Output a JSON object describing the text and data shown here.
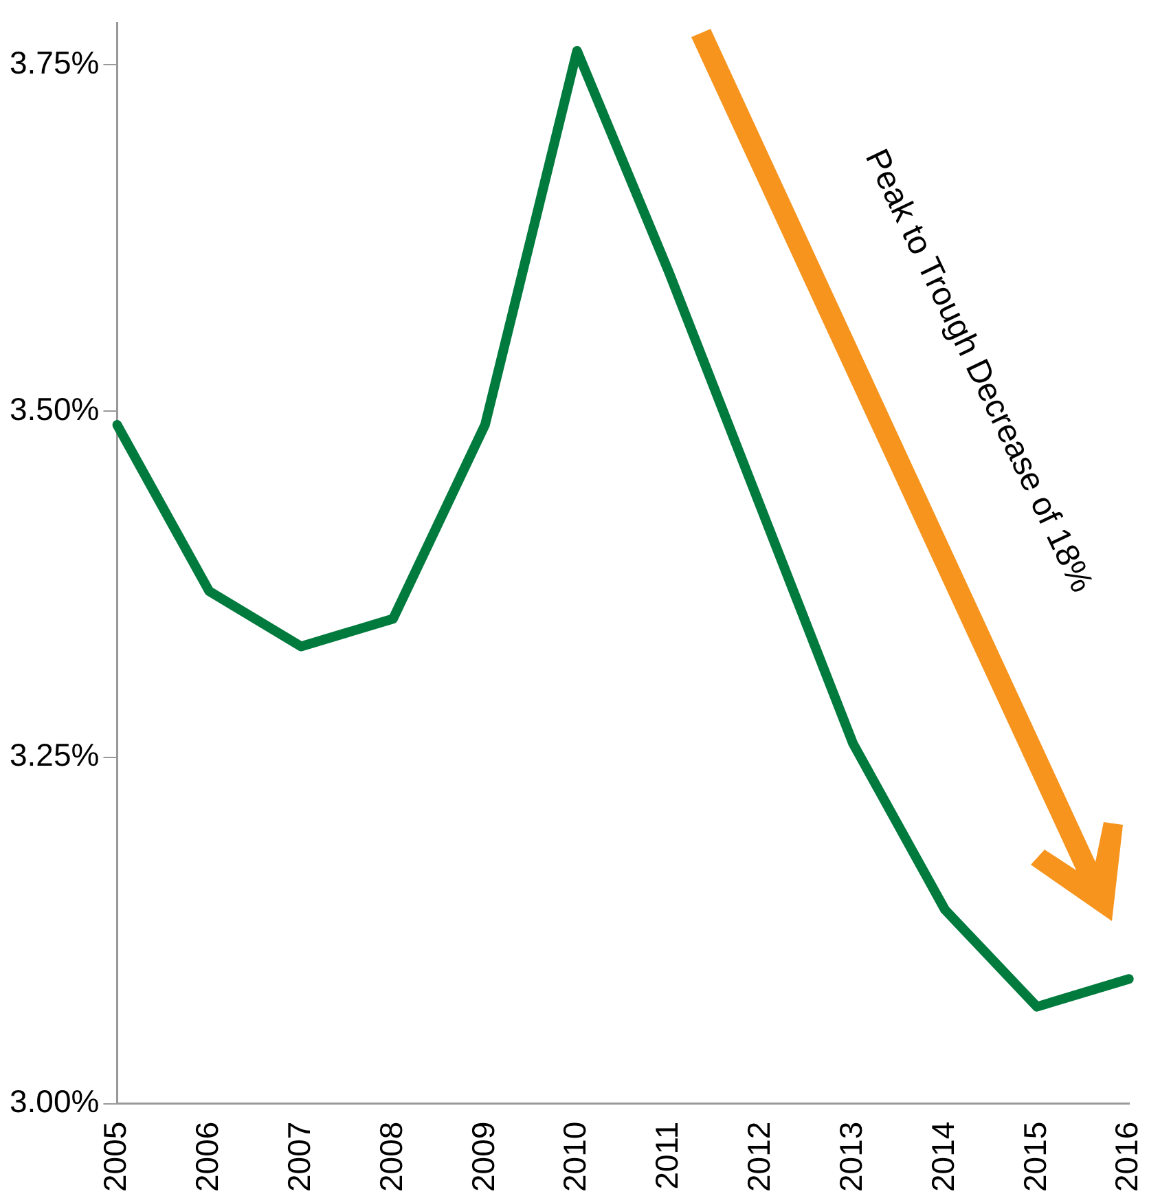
{
  "chart_data": {
    "type": "line",
    "categories": [
      "2005",
      "2006",
      "2007",
      "2008",
      "2009",
      "2010",
      "2011",
      "2012",
      "2013",
      "2014",
      "2015",
      "2016"
    ],
    "series": [
      {
        "color": "#007a3d",
        "values": [
          3.49,
          3.37,
          3.33,
          3.35,
          3.49,
          3.76,
          3.6,
          3.43,
          3.26,
          3.14,
          3.07,
          3.09
        ]
      }
    ],
    "ylim": [
      3.0,
      3.78
    ],
    "yticks": [
      {
        "value": 3.0,
        "label": "3.00%"
      },
      {
        "value": 3.25,
        "label": "3.25%"
      },
      {
        "value": 3.5,
        "label": "3.50%"
      },
      {
        "value": 3.75,
        "label": "3.75%"
      }
    ],
    "grid": false,
    "legend": false,
    "marker": "none",
    "line_style": "solid",
    "annotations": [
      "Peak to Trough Decrease of 18%"
    ]
  }
}
